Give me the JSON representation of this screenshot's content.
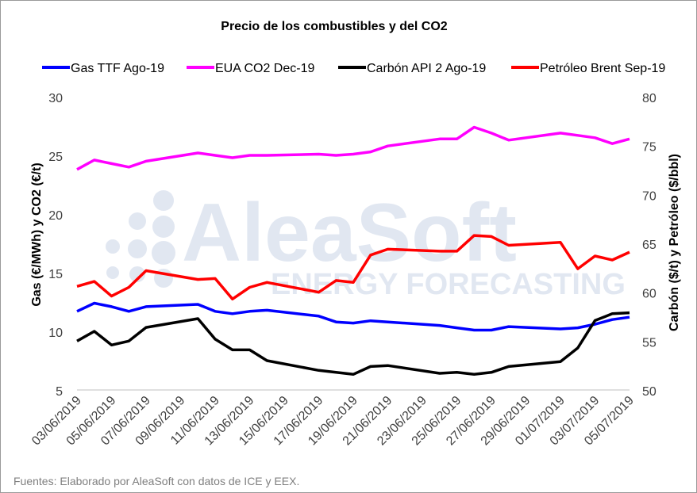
{
  "chart_data": {
    "type": "line",
    "title": "Precio de los combustibles y del CO2",
    "ylabel_left": "Gas (€/MWh) y CO2 (€/t)",
    "ylabel_right": "Carbón ($/t) y Petróleo ($/bbl)",
    "ylim_left": [
      5,
      30
    ],
    "yticks_left": [
      "30",
      "25",
      "20",
      "15",
      "10",
      "5"
    ],
    "ylim_right": [
      50,
      80
    ],
    "yticks_right": [
      "80",
      "75",
      "70",
      "65",
      "60",
      "55",
      "50"
    ],
    "grid": false,
    "legend_position": "top",
    "x": [
      "03/06/2019",
      "04/06/2019",
      "05/06/2019",
      "06/06/2019",
      "07/06/2019",
      "10/06/2019",
      "11/06/2019",
      "12/06/2019",
      "13/06/2019",
      "14/06/2019",
      "17/06/2019",
      "18/06/2019",
      "19/06/2019",
      "20/06/2019",
      "21/06/2019",
      "24/06/2019",
      "25/06/2019",
      "26/06/2019",
      "27/06/2019",
      "28/06/2019",
      "01/07/2019",
      "02/07/2019",
      "03/07/2019",
      "04/07/2019",
      "05/07/2019"
    ],
    "xticks": [
      "03/06/2019",
      "05/06/2019",
      "07/06/2019",
      "09/06/2019",
      "11/06/2019",
      "13/06/2019",
      "15/06/2019",
      "17/06/2019",
      "19/06/2019",
      "21/06/2019",
      "23/06/2019",
      "25/06/2019",
      "27/06/2019",
      "29/06/2019",
      "01/07/2019",
      "03/07/2019",
      "05/07/2019"
    ],
    "series": [
      {
        "name": "Gas TTF Ago-19",
        "axis": "left",
        "color": "#0000ff",
        "values": [
          11.7,
          12.4,
          12.1,
          11.7,
          12.1,
          12.3,
          11.7,
          11.5,
          11.7,
          11.8,
          11.3,
          10.8,
          10.7,
          10.9,
          10.8,
          10.5,
          10.3,
          10.1,
          10.1,
          10.4,
          10.2,
          10.3,
          10.6,
          11.0,
          11.2
        ]
      },
      {
        "name": "EUA CO2 Dec-19",
        "axis": "left",
        "color": "#ff00ff",
        "values": [
          23.8,
          24.6,
          24.3,
          24.0,
          24.5,
          25.2,
          25.0,
          24.8,
          25.0,
          25.0,
          25.1,
          25.0,
          25.1,
          25.3,
          25.8,
          26.4,
          26.4,
          27.4,
          26.9,
          26.3,
          26.9,
          26.7,
          26.5,
          26.0,
          26.4
        ]
      },
      {
        "name": "Carbón API 2 Ago-19",
        "axis": "right",
        "color": "#000000",
        "values": [
          55.0,
          56.0,
          54.6,
          55.0,
          56.4,
          57.3,
          55.2,
          54.1,
          54.1,
          53.0,
          52.0,
          51.8,
          51.6,
          52.4,
          52.5,
          51.7,
          51.8,
          51.6,
          51.8,
          52.4,
          52.9,
          54.3,
          57.1,
          57.8,
          57.9
        ]
      },
      {
        "name": "Petróleo Brent Sep-19",
        "axis": "right",
        "color": "#ff0000",
        "values": [
          60.6,
          61.1,
          59.6,
          60.5,
          62.2,
          61.3,
          61.4,
          59.3,
          60.5,
          61.0,
          60.0,
          61.2,
          61.0,
          63.8,
          64.4,
          64.2,
          64.2,
          65.8,
          65.7,
          64.8,
          65.1,
          62.4,
          63.7,
          63.3,
          64.1
        ]
      }
    ],
    "watermark": {
      "brand": "AleaSoft",
      "tagline": "ENERGY FORECASTING"
    }
  },
  "footer": {
    "source": "Fuentes: Elaborado por AleaSoft con datos de ICE y EEX."
  }
}
